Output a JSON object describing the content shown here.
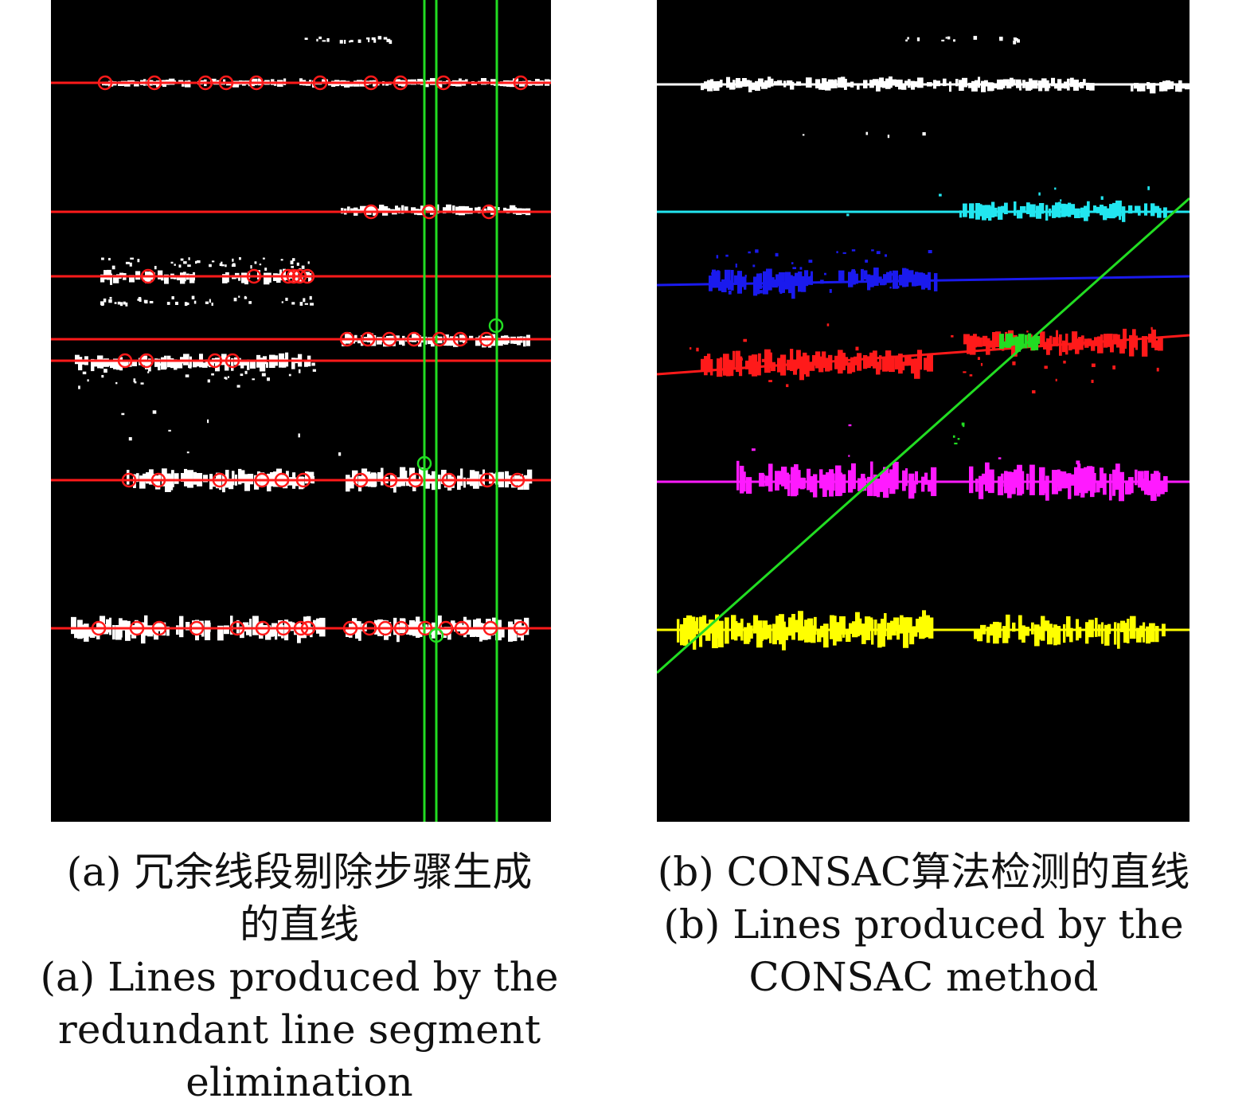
{
  "figure": {
    "panel_a": {
      "caption_zh": "(a) 冗余线段剔除步骤生成的直线",
      "caption_zh_lines": [
        "(a) 冗余线段剔除步骤生成",
        "的直线"
      ],
      "caption_en_lines": [
        "(a) Lines produced by the",
        "redundant line segment",
        "elimination"
      ]
    },
    "panel_b": {
      "caption_zh": "(b) CONSAC算法检测的直线",
      "caption_en_lines": [
        "(b) Lines produced by the",
        "CONSAC method"
      ]
    },
    "colors": {
      "background": "#000000",
      "points": "#ffffff",
      "red": "#ff1a1a",
      "green": "#22dd22",
      "cyan": "#22e6f0",
      "blue": "#1a1aee",
      "magenta": "#ff1aff",
      "yellow": "#ffff00"
    }
  }
}
